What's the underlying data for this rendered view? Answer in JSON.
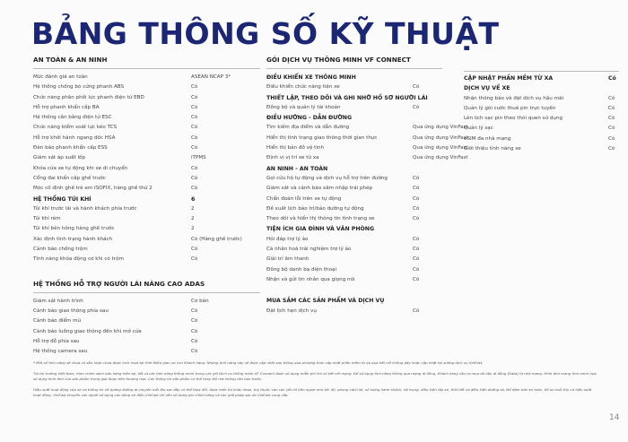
{
  "title": "BẢNG THÔNG SỐ KỸ THUẬT",
  "title_color": "#1b2675",
  "left": {
    "sections": [
      {
        "title": "AN TOÀN & AN NINH",
        "items": [
          {
            "label": "Mức đánh giá an toàn",
            "value": "ASEAN NCAP 3*"
          },
          {
            "label": "Hệ thống chống bó cứng phanh ABS",
            "value": "Có"
          },
          {
            "label": "Chức năng phân phối lực phanh điện tử EBD",
            "value": "Có"
          },
          {
            "label": "Hỗ trợ phanh khẩn cấp BA",
            "value": "Có"
          },
          {
            "label": "Hệ thống cân bằng điện tử ESC",
            "value": "Có"
          },
          {
            "label": "Chức năng kiểm soát lực kéo TCS",
            "value": "Có"
          },
          {
            "label": "Hỗ trợ khởi hành ngang dốc HSA",
            "value": "Có"
          },
          {
            "label": "Đèn báo phanh khẩn cấp ESS",
            "value": "Có"
          },
          {
            "label": "Giám sát áp suất lốp",
            "value": "iTPMS"
          },
          {
            "label": "Khóa cửa xe tự động khi xe di chuyển",
            "value": "Có"
          },
          {
            "label": "Cổng đai khẩn cấp ghế trước",
            "value": "Có"
          },
          {
            "label": "Móc cố định ghế trẻ em ISOFIX, hàng ghế thứ 2",
            "value": "Có"
          },
          {
            "label": "HỆ THỐNG TÚI KHÍ",
            "value": "6",
            "sub": true
          },
          {
            "label": "Túi khí trước lái và hành khách phía trước",
            "value": "2"
          },
          {
            "label": "Túi khí rèm",
            "value": "2"
          },
          {
            "label": "Túi khí bên hông hàng ghế trước",
            "value": "2"
          },
          {
            "label": "Xác định tình trạng hành khách",
            "value": "Có (Hàng ghế trước)"
          },
          {
            "label": "Cảnh báo chống trộm",
            "value": "Có"
          },
          {
            "label": "Tính năng khóa động cơ khi có trộm",
            "value": "Có"
          }
        ]
      },
      {
        "title": "HỆ THỐNG HỖ TRỢ NGƯỜI LÁI NÂNG CAO ADAS",
        "items": [
          {
            "label": "Giám sát hành trình",
            "value": "Cơ bản"
          },
          {
            "label": "Cảnh báo giao thông phía sau",
            "value": "Có"
          },
          {
            "label": "Cảnh báo điểm mù",
            "value": "Có"
          },
          {
            "label": "Cảnh báo luồng giao thông đến khi mở cửa",
            "value": "Có"
          },
          {
            "label": "Hỗ trợ đỗ phía sau",
            "value": "Có"
          },
          {
            "label": "Hệ thống camera sau",
            "value": "Có"
          }
        ]
      }
    ]
  },
  "middle": {
    "title": "GÓI DỊCH VỤ THÔNG MINH VF CONNECT",
    "items": [
      {
        "label": "ĐIỀU KHIỂN XE THÔNG MINH",
        "sub": true
      },
      {
        "label": "Điều khiển chức năng tiện xe",
        "value": "Có"
      },
      {
        "label": "THIẾT LẬP, THEO DÕI VÀ GHI NHỚ HỒ SƠ NGƯỜI LÁI",
        "sub": true
      },
      {
        "label": "Đồng bộ và quản lý tài khoản",
        "value": "Có"
      },
      {
        "label": "ĐIỀU HƯỚNG - DẪN ĐƯỜNG",
        "sub": true
      },
      {
        "label": "Tìm kiếm địa điểm và dẫn đường",
        "value": "Qua ứng dụng VinFast"
      },
      {
        "label": "Hiển thị tình trạng giao thông thời gian thực",
        "value": "Qua ứng dụng VinFast"
      },
      {
        "label": "Hiển thị bản đồ vệ tinh",
        "value": "Qua ứng dụng VinFast"
      },
      {
        "label": "Định vị vị trí xe từ xa",
        "value": "Qua ứng dụng VinFast"
      },
      {
        "label": "AN NINH - AN TOÀN",
        "sub": true
      },
      {
        "label": "Gọi cứu hộ tự động và dịch vụ hỗ trợ trên đường",
        "value": "Có"
      },
      {
        "label": "Giám sát và cảnh báo xâm nhập trái phép",
        "value": "Có"
      },
      {
        "label": "Chẩn đoán lỗi trên xe tự động",
        "value": "Có"
      },
      {
        "label": "Đề xuất lịch bảo trì/bảo dưỡng tự động",
        "value": "Có"
      },
      {
        "label": "Theo dõi và hiển thị thông tin tình trạng xe",
        "value": "Có"
      },
      {
        "label": "TIỆN ÍCH GIA ĐÌNH VÀ VĂN PHÒNG",
        "sub": true
      },
      {
        "label": "Hỏi đáp trợ lý ảo",
        "value": "Có"
      },
      {
        "label": "Cá nhân hoá trải nghiệm trợ lý ảo",
        "value": "Có"
      },
      {
        "label": "Giải trí âm thanh",
        "value": "Có"
      },
      {
        "label": "Đồng bộ danh bạ điện thoại",
        "value": "Có"
      },
      {
        "label": "Nhận và gửi tin nhắn qua giọng nói",
        "value": "Có"
      },
      {
        "gap": true
      },
      {
        "label": "MUA SẮM CÁC SẢN PHẨM VÀ DỊCH VỤ",
        "sub": true
      },
      {
        "label": "Đặt lịch hẹn dịch vụ",
        "value": "Có"
      }
    ]
  },
  "right": {
    "items": [
      {
        "label": "CẬP NHẬT PHẦN MỀM TỪ XA",
        "value": "Có",
        "sub": true
      },
      {
        "label": "DỊCH VỤ VỀ XE",
        "sub": true
      },
      {
        "label": "Nhận thông báo và đặt dịch vụ hậu mãi",
        "value": "Có"
      },
      {
        "label": "Quản lý gói cước thuê pin trực tuyến",
        "value": "Có"
      },
      {
        "label": "Lên lịch sạc pin theo thói quen sử dụng",
        "value": "Có"
      },
      {
        "label": "Quản lý sạc",
        "value": "Có"
      },
      {
        "label": "eSIM đa nhà mạng",
        "value": "Có"
      },
      {
        "label": "Giới thiệu tính năng xe",
        "value": "Có"
      }
    ]
  },
  "notes": [
    "* Một số tính năng sẽ chưa có sẵn hoặc chưa được kích hoạt tại thời điểm giao xe cho Khách hàng. Những tính năng này sẽ được cập nhật sau thông qua phương thức cập nhật phần mềm từ xa qua kết nối không dây hoặc cập nhật tại xưởng dịch vụ VinFast.",
    "Tại thị trường Việt Nam, theo chính sách bán hàng hiện tại, tất cả các tính năng thông minh trong các gói Dịch vụ thông minh VF Connect được sử dụng miễn phí khi có kết nối mạng. Để sử dụng tính năng thông qua mạng di động, Khách hàng cần tự mua dữ liệu di động (Data) từ nhà mạng. Hình ảnh mang tính minh họa, sử dụng hình ảnh của sản phẩm trong giai đoạn tiền thương mại. Các thông tin sản phẩm có thể thay đổi mà không cần báo trước.",
    "Hiệu suất hoạt động của xe và thông tin về quãng đường di chuyển mỗi lần sạc đầy có thể thay đổi, được hiển thị khác nhau, tùy thuộc vào các yếu tố bên ngoài như tốc độ, phong cách lái, số lượng hành khách, tải trọng, điều kiện lắp xe, thời tiết và điều kiện đường sá. Để đảm bảo an toàn, tối ưu tuổi thọ và hiệu suất hoạt động, VinFast khuyến cáo người sử dụng các dòng xe điện VinFast chỉ nên sử dụng pin chính hãng và các giải pháp sạc do VinFast cung cấp."
  ],
  "page_number": "14"
}
